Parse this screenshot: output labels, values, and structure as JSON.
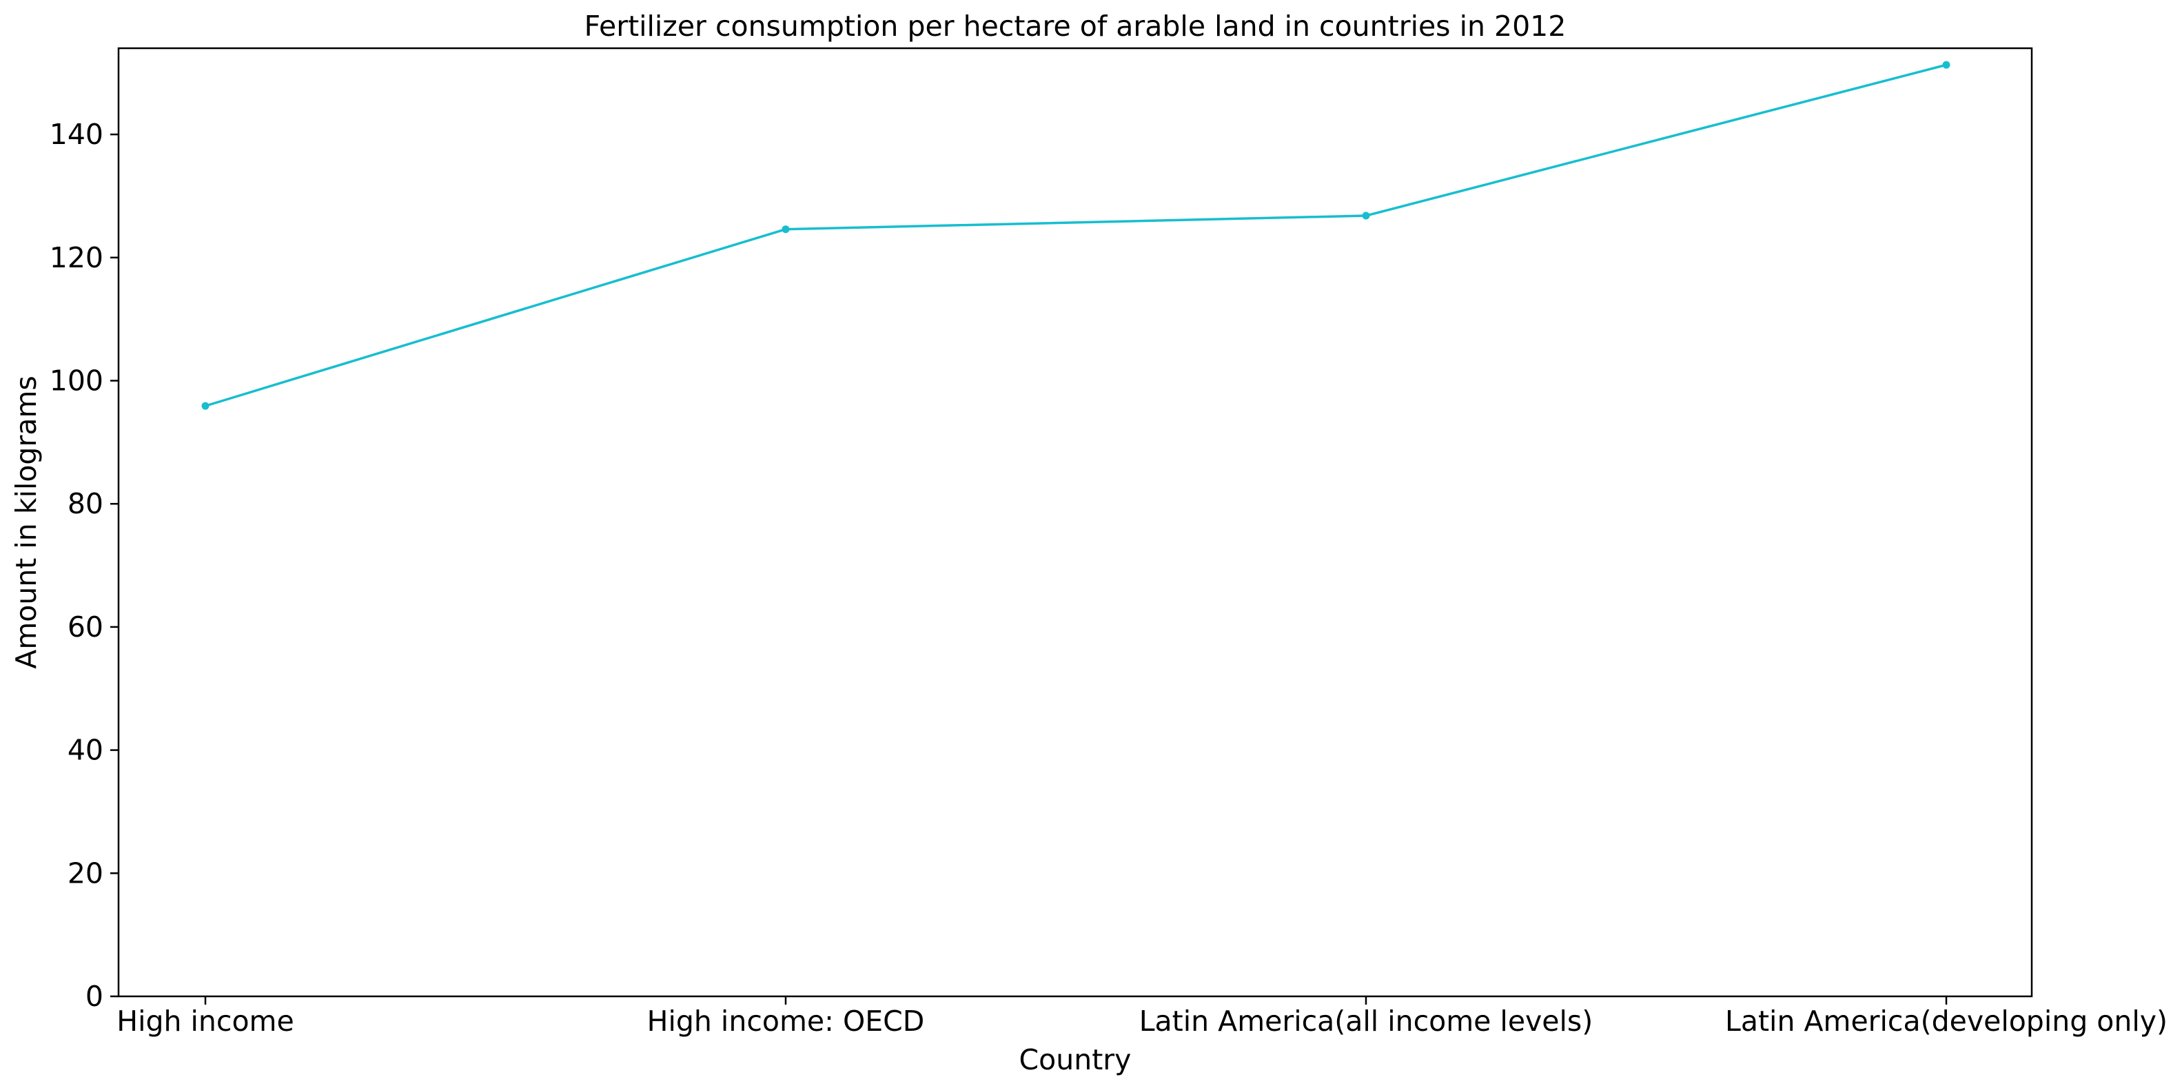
{
  "chart_data": {
    "type": "line",
    "title": "Fertilizer consumption per hectare of arable land in countries in 2012",
    "xlabel": "Country",
    "ylabel": "Amount in kilograms",
    "categories": [
      "High income",
      "High income: OECD",
      "Latin America(all income levels)",
      "Latin America(developing only)"
    ],
    "series": [
      {
        "values": [
          95.9,
          124.6,
          126.8,
          151.3
        ],
        "color": "#17becf",
        "marker": "dot"
      }
    ],
    "ylim": [
      0,
      154
    ],
    "yticks": [
      0,
      20,
      40,
      60,
      80,
      100,
      120,
      140
    ],
    "grid": false,
    "legend": "none"
  }
}
